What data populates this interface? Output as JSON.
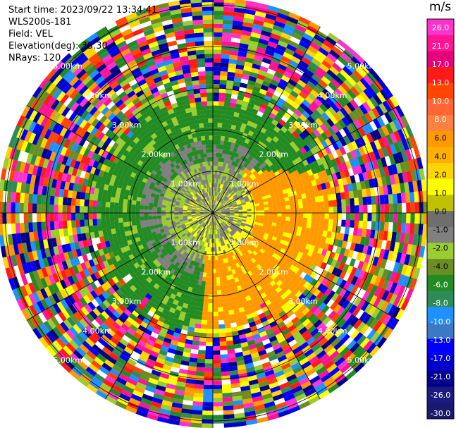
{
  "header": {
    "start_time": "Start time: 2023/09/22 13:34:41",
    "instrument": "WLS200s-181",
    "field": "Field: VEL",
    "elevation": "Elevation(deg): 35.30",
    "nrays": "NRays: 120"
  },
  "colorbar": {
    "unit": "m/s",
    "ticks": [
      "26.0",
      "21.0",
      "17.0",
      "13.0",
      "10.0",
      "8.0",
      "6.0",
      "4.0",
      "2.0",
      "1.0",
      "0.0",
      "-1.0",
      "-2.0",
      "-4.0",
      "-6.0",
      "-8.0",
      "-10.0",
      "-13.0",
      "-17.0",
      "-21.0",
      "-26.0",
      "-30.0"
    ],
    "colors": [
      "#ff33cc",
      "#ff1493",
      "#e6007a",
      "#ff1a1a",
      "#ff4500",
      "#ff6633",
      "#ff8040",
      "#ff9900",
      "#ffb000",
      "#ffd400",
      "#ffff00",
      "#c0c000",
      "#6e6e6e",
      "#808080",
      "#9acd32",
      "#6b8e23",
      "#228b22",
      "#2e8b57",
      "#1e90ff",
      "#3c78c8",
      "#0000ff",
      "#0000cd",
      "#00008b",
      "#1a1a80",
      "#191970"
    ]
  },
  "ring_labels": {
    "r1": "1.00km",
    "r2": "2.00km",
    "r3": "3.00km",
    "r4": "4.00km",
    "r5": "5.00km"
  },
  "palette": {
    "green_dark": "#228b22",
    "green_light": "#9acd32",
    "gray": "#808080",
    "yellow": "#ffff00",
    "orange": "#ff9900",
    "orange_dark": "#ff8000",
    "noise": [
      "#ff33cc",
      "#ff1a1a",
      "#ff4500",
      "#ffff00",
      "#0000ff",
      "#00008b",
      "#228b22",
      "#2e8b57",
      "#ff9900",
      "#9acd32",
      "#1e90ff",
      "#ff1493",
      "#ffd400",
      "#ffffff",
      "#0000cd",
      "#6b8e23"
    ]
  }
}
